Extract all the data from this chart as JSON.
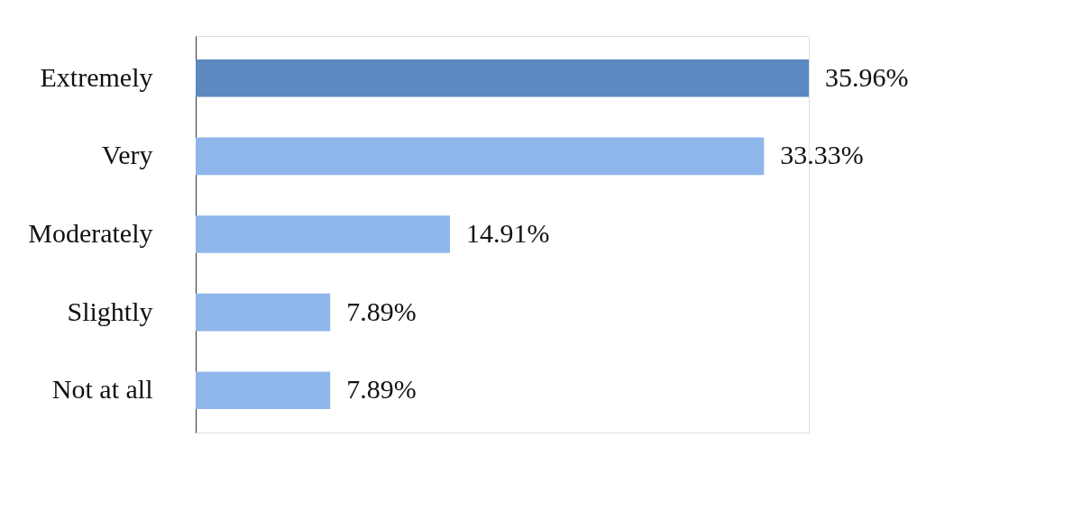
{
  "chart_data": {
    "type": "bar",
    "orientation": "horizontal",
    "categories": [
      "Extremely",
      "Very",
      "Moderately",
      "Slightly",
      "Not at all"
    ],
    "values": [
      35.96,
      33.33,
      14.91,
      7.89,
      7.89
    ],
    "value_labels": [
      "35.96%",
      "33.33%",
      "14.91%",
      "7.89%",
      "7.89%"
    ],
    "colors": [
      "#5b89c0",
      "#8fb6ea",
      "#8fb6ea",
      "#8fb6ea",
      "#8fb6ea"
    ]
  }
}
